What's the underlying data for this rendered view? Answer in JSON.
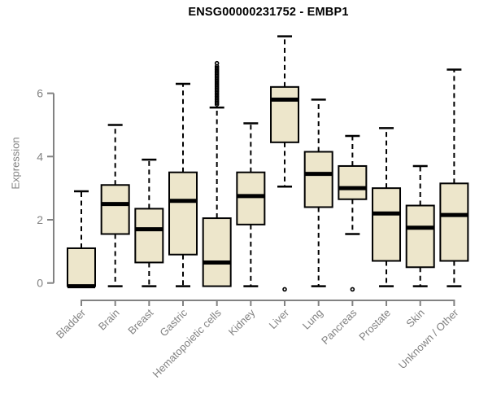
{
  "header": {
    "title": "ENSG00000231752 - EMBP1"
  },
  "chart_data": {
    "type": "boxplot",
    "title": "ENSG00000231752 - EMBP1",
    "ylabel": "Expression",
    "xlabel": "",
    "yticks": [
      "0",
      "2",
      "4",
      "6"
    ],
    "ytick_values": [
      0,
      2,
      4,
      6
    ],
    "ylim": [
      -0.3,
      7.9
    ],
    "grid": false,
    "legend": "none",
    "colors": {
      "box_fill": "#EDE6CB",
      "box_stroke": "#000000",
      "median": "#000000",
      "whisker": "#000000",
      "axis": "#828282",
      "tick_label": "#828282",
      "title": "#000000"
    },
    "categories": [
      "Bladder",
      "Brain",
      "Breast",
      "Gastric",
      "Hematopoietic cells",
      "Kidney",
      "Liver",
      "Lung",
      "Pancreas",
      "Prostate",
      "Skin",
      "Unknown / Other"
    ],
    "series": [
      {
        "category": "Bladder",
        "whisker_low": null,
        "q1": -0.1,
        "median": -0.1,
        "q3": 1.1,
        "whisker_high": 2.9,
        "outliers": []
      },
      {
        "category": "Brain",
        "whisker_low": -0.1,
        "q1": 1.55,
        "median": 2.5,
        "q3": 3.1,
        "whisker_high": 5.0,
        "outliers": []
      },
      {
        "category": "Breast",
        "whisker_low": -0.1,
        "q1": 0.65,
        "median": 1.7,
        "q3": 2.35,
        "whisker_high": 3.9,
        "outliers": []
      },
      {
        "category": "Gastric",
        "whisker_low": -0.1,
        "q1": 0.9,
        "median": 2.6,
        "q3": 3.5,
        "whisker_high": 6.3,
        "outliers": []
      },
      {
        "category": "Hematopoietic cells",
        "whisker_low": null,
        "q1": -0.1,
        "median": 0.65,
        "q3": 2.05,
        "whisker_high": 5.55,
        "outliers": [
          6.95,
          6.85,
          6.8,
          6.75,
          6.7,
          6.65,
          6.6,
          6.55,
          6.5,
          6.45,
          6.4,
          6.35,
          6.3,
          6.25,
          6.2,
          6.15,
          6.1,
          6.05,
          6.0,
          5.95,
          5.9,
          5.85,
          5.8,
          5.75,
          5.7,
          5.65
        ]
      },
      {
        "category": "Kidney",
        "whisker_low": -0.1,
        "q1": 1.85,
        "median": 2.75,
        "q3": 3.5,
        "whisker_high": 5.05,
        "outliers": []
      },
      {
        "category": "Liver",
        "whisker_low": 3.05,
        "q1": 4.45,
        "median": 5.8,
        "q3": 6.2,
        "whisker_high": 7.8,
        "outliers": [
          -0.2
        ]
      },
      {
        "category": "Lung",
        "whisker_low": -0.1,
        "q1": 2.4,
        "median": 3.45,
        "q3": 4.15,
        "whisker_high": 5.8,
        "outliers": []
      },
      {
        "category": "Pancreas",
        "whisker_low": 1.55,
        "q1": 2.65,
        "median": 3.0,
        "q3": 3.7,
        "whisker_high": 4.65,
        "outliers": [
          -0.2
        ]
      },
      {
        "category": "Prostate",
        "whisker_low": -0.1,
        "q1": 0.7,
        "median": 2.2,
        "q3": 3.0,
        "whisker_high": 4.9,
        "outliers": []
      },
      {
        "category": "Skin",
        "whisker_low": -0.1,
        "q1": 0.5,
        "median": 1.75,
        "q3": 2.45,
        "whisker_high": 3.7,
        "outliers": []
      },
      {
        "category": "Unknown / Other",
        "whisker_low": -0.1,
        "q1": 0.7,
        "median": 2.15,
        "q3": 3.15,
        "whisker_high": 6.75,
        "outliers": []
      }
    ]
  }
}
